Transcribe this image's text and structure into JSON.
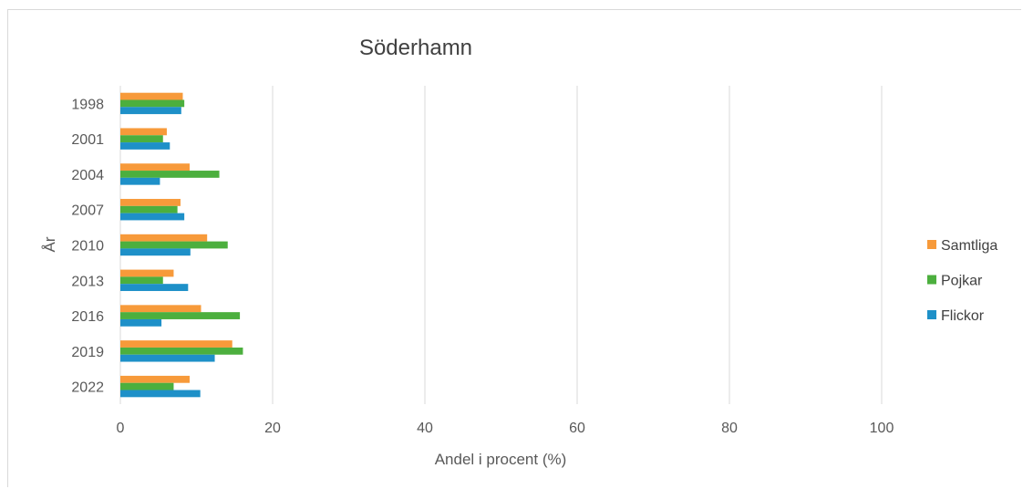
{
  "chart_data": {
    "type": "bar",
    "orientation": "horizontal",
    "title": "Söderhamn",
    "xlabel": "Andel i procent (%)",
    "ylabel": "År",
    "categories": [
      "1998",
      "2001",
      "2004",
      "2007",
      "2010",
      "2013",
      "2016",
      "2019",
      "2022"
    ],
    "series": [
      {
        "name": "Samtliga",
        "color": "#f79a3a",
        "values": [
          8.2,
          6.1,
          9.1,
          7.9,
          11.4,
          7.0,
          10.6,
          14.7,
          9.1
        ]
      },
      {
        "name": "Pojkar",
        "color": "#4caf3e",
        "values": [
          8.4,
          5.6,
          13.0,
          7.5,
          14.1,
          5.6,
          15.7,
          16.1,
          7.0
        ]
      },
      {
        "name": "Flickor",
        "color": "#1e90c8",
        "values": [
          8.0,
          6.5,
          5.2,
          8.4,
          9.2,
          8.9,
          5.4,
          12.4,
          10.5
        ]
      }
    ],
    "xlim": [
      0,
      100
    ],
    "xticks": [
      "0",
      "20",
      "40",
      "60",
      "80",
      "100"
    ],
    "grid": "vertical",
    "legend_position": "right"
  }
}
